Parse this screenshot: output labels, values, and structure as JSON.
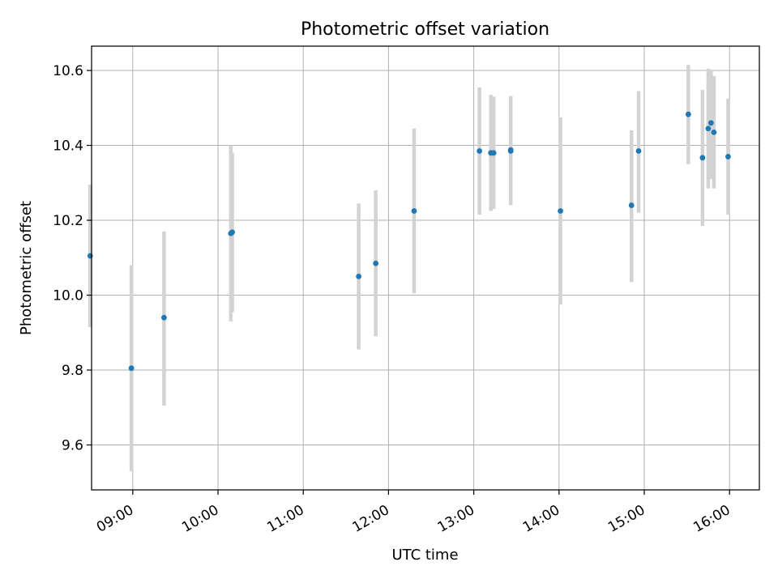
{
  "chart_data": {
    "type": "scatter",
    "title": "Photometric offset variation",
    "xlabel": "UTC time",
    "ylabel": "Photometric offset",
    "x_ticks": [
      "09:00",
      "10:00",
      "11:00",
      "12:00",
      "13:00",
      "14:00",
      "15:00",
      "16:00"
    ],
    "y_ticks": [
      "9.6",
      "9.8",
      "10.0",
      "10.2",
      "10.4",
      "10.6"
    ],
    "xlim": [
      "08:31",
      "16:21"
    ],
    "ylim": [
      9.48,
      10.665
    ],
    "grid": true,
    "marker_color": "#1f77b4",
    "errorbar_color": "#d3d3d3",
    "points": [
      {
        "x": "08:30",
        "y": 10.105,
        "err_low": 9.915,
        "err_high": 10.295
      },
      {
        "x": "08:59",
        "y": 9.805,
        "err_low": 9.53,
        "err_high": 10.08
      },
      {
        "x": "09:22",
        "y": 9.94,
        "err_low": 9.705,
        "err_high": 10.17
      },
      {
        "x": "10:09",
        "y": 10.165,
        "err_low": 9.93,
        "err_high": 10.4
      },
      {
        "x": "10:10",
        "y": 10.168,
        "err_low": 9.955,
        "err_high": 10.38
      },
      {
        "x": "11:39",
        "y": 10.05,
        "err_low": 9.855,
        "err_high": 10.245
      },
      {
        "x": "11:51",
        "y": 10.085,
        "err_low": 9.89,
        "err_high": 10.28
      },
      {
        "x": "12:18",
        "y": 10.225,
        "err_low": 10.005,
        "err_high": 10.445
      },
      {
        "x": "13:04",
        "y": 10.385,
        "err_low": 10.215,
        "err_high": 10.555
      },
      {
        "x": "13:12",
        "y": 10.38,
        "err_low": 10.225,
        "err_high": 10.535
      },
      {
        "x": "13:14",
        "y": 10.38,
        "err_low": 10.23,
        "err_high": 10.53
      },
      {
        "x": "13:26",
        "y": 10.385,
        "err_low": 10.24,
        "err_high": 10.53
      },
      {
        "x": "13:26",
        "y": 10.388,
        "err_low": 10.245,
        "err_high": 10.532
      },
      {
        "x": "14:01",
        "y": 10.225,
        "err_low": 9.975,
        "err_high": 10.475
      },
      {
        "x": "14:51",
        "y": 10.24,
        "err_low": 10.035,
        "err_high": 10.44
      },
      {
        "x": "14:56",
        "y": 10.385,
        "err_low": 10.22,
        "err_high": 10.545
      },
      {
        "x": "15:31",
        "y": 10.483,
        "err_low": 10.35,
        "err_high": 10.615
      },
      {
        "x": "15:41",
        "y": 10.367,
        "err_low": 10.185,
        "err_high": 10.548
      },
      {
        "x": "15:45",
        "y": 10.445,
        "err_low": 10.285,
        "err_high": 10.605
      },
      {
        "x": "15:47",
        "y": 10.46,
        "err_low": 10.31,
        "err_high": 10.6
      },
      {
        "x": "15:49",
        "y": 10.435,
        "err_low": 10.285,
        "err_high": 10.585
      },
      {
        "x": "15:59",
        "y": 10.37,
        "err_low": 10.215,
        "err_high": 10.525
      }
    ]
  }
}
